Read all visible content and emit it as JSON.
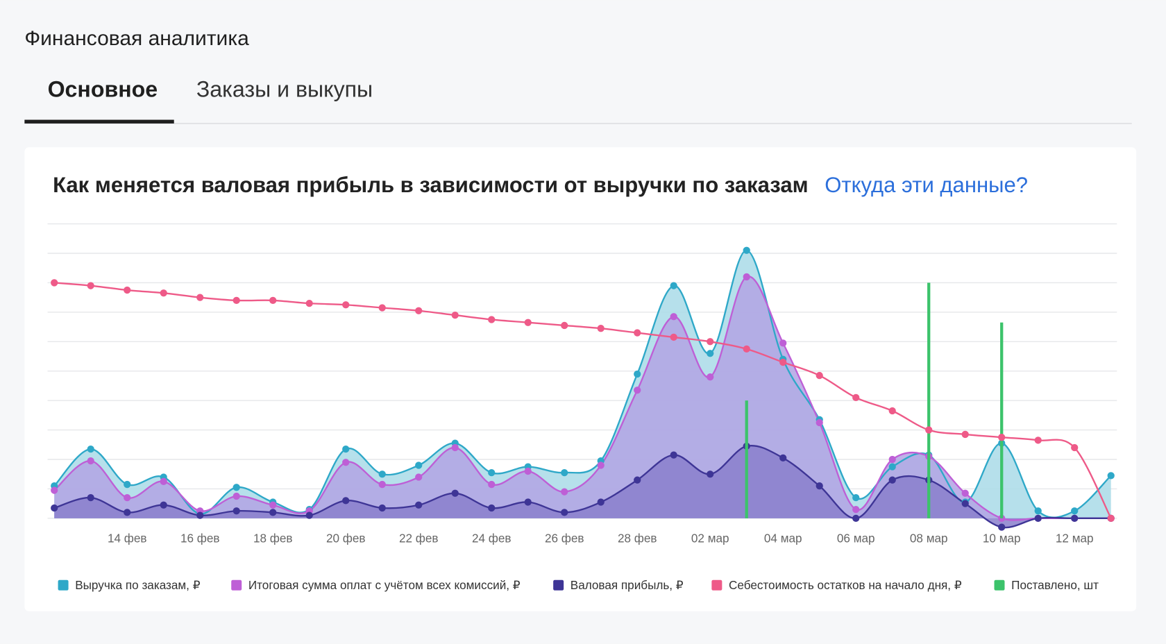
{
  "page": {
    "title": "Финансовая аналитика",
    "tabs": [
      "Основное",
      "Заказы и выкупы"
    ],
    "active_tab": 0
  },
  "chart_data": {
    "type": "area",
    "title": "Как меняется валовая прибыль в зависимости от выручки по заказам",
    "link": "Откуда эти данные?",
    "categories": [
      null,
      null,
      "14 фев",
      null,
      "16 фев",
      null,
      "18 фев",
      null,
      "20 фев",
      null,
      "22 фев",
      null,
      "24 фев",
      null,
      "26 фев",
      null,
      "28 фев",
      null,
      "02 мар",
      null,
      "04 мар",
      null,
      "06 мар",
      null,
      "08 мар",
      null,
      "10 мар",
      null,
      "12 мар",
      null
    ],
    "ylim": [
      0,
      10
    ],
    "yticks": [
      0,
      1,
      2,
      3,
      4,
      5,
      6,
      7,
      8,
      9,
      10
    ],
    "grid": true,
    "legend": "bottom",
    "series": [
      {
        "name": "Выручка по заказам, ₽",
        "color": "#2ea8c8",
        "fill": "#a9dbe8",
        "type": "area",
        "values": [
          1.1,
          2.35,
          1.15,
          1.4,
          0.15,
          1.05,
          0.55,
          0.3,
          2.35,
          1.5,
          1.8,
          2.55,
          1.55,
          1.75,
          1.55,
          1.95,
          4.9,
          7.9,
          5.6,
          9.1,
          5.4,
          3.35,
          0.7,
          1.75,
          2.15,
          0.55,
          2.55,
          0.25,
          0.25,
          1.45
        ]
      },
      {
        "name": "Итоговая сумма оплат с учётом всех комиссий, ₽",
        "color": "#be5fd6",
        "fill": "#b3a3e4",
        "type": "area",
        "values": [
          0.95,
          1.95,
          0.7,
          1.25,
          0.25,
          0.75,
          0.45,
          0.25,
          1.9,
          1.15,
          1.4,
          2.4,
          1.15,
          1.6,
          0.9,
          1.8,
          4.35,
          6.85,
          4.8,
          8.2,
          5.95,
          3.25,
          0.3,
          2.0,
          2.1,
          0.85,
          0,
          0,
          0,
          0
        ]
      },
      {
        "name": "Валовая прибыль, ₽",
        "color": "#3e3596",
        "fill": "#8a7fcc",
        "type": "area",
        "values": [
          0.35,
          0.7,
          0.2,
          0.45,
          0.1,
          0.25,
          0.2,
          0.1,
          0.6,
          0.35,
          0.45,
          0.85,
          0.35,
          0.55,
          0.2,
          0.55,
          1.3,
          2.15,
          1.5,
          2.45,
          2.05,
          1.1,
          0,
          1.3,
          1.3,
          0.5,
          -0.3,
          0,
          0,
          0
        ]
      },
      {
        "name": "Себестоимость остатков на начало дня, ₽",
        "color": "#ee5a88",
        "type": "line",
        "values": [
          8.0,
          7.9,
          7.75,
          7.65,
          7.5,
          7.4,
          7.4,
          7.3,
          7.25,
          7.15,
          7.05,
          6.9,
          6.75,
          6.65,
          6.55,
          6.45,
          6.3,
          6.15,
          6.0,
          5.75,
          5.3,
          4.85,
          4.1,
          3.65,
          3.0,
          2.85,
          2.75,
          2.65,
          2.4,
          0
        ]
      },
      {
        "name": "Поставлено, шт",
        "color": "#3cc36b",
        "type": "bar",
        "values": [
          null,
          null,
          null,
          null,
          null,
          null,
          null,
          null,
          null,
          null,
          null,
          null,
          null,
          null,
          null,
          null,
          null,
          null,
          null,
          4.0,
          null,
          null,
          null,
          null,
          8.0,
          null,
          6.65,
          null,
          null,
          null
        ]
      }
    ]
  }
}
